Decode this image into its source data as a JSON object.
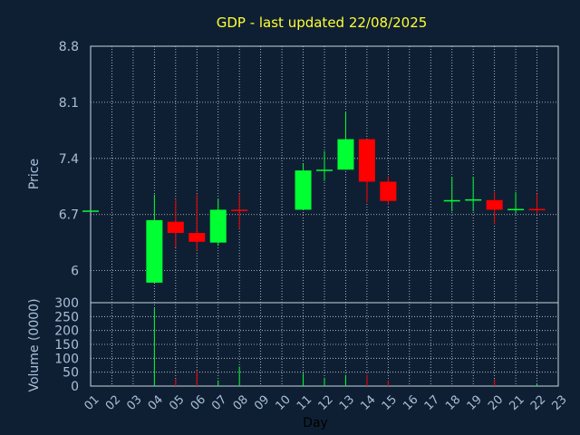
{
  "chart_data": {
    "type": "candlestick",
    "title": "GDP - last updated 22/08/2025",
    "xlabel": "Day",
    "x_ticks": [
      "01",
      "02",
      "03",
      "04",
      "05",
      "06",
      "07",
      "08",
      "09",
      "10",
      "11",
      "12",
      "13",
      "14",
      "15",
      "16",
      "17",
      "18",
      "19",
      "20",
      "21",
      "22",
      "23"
    ],
    "grid": true,
    "colors": {
      "background": "#0f1f33",
      "up": "#00ff33",
      "down": "#ff0000",
      "grid": "#c8d4e0",
      "title": "#ffff33",
      "axis_text": "#a9bfd9"
    },
    "price_panel": {
      "ylabel": "Price",
      "ylim": [
        5.6,
        8.8
      ],
      "y_ticks": [
        "8.8",
        "8.1",
        "7.4",
        "6.7",
        "6"
      ],
      "y_tick_values": [
        8.8,
        8.1,
        7.4,
        6.7,
        6.0
      ],
      "candles": [
        {
          "day": "01",
          "open": 6.75,
          "high": 6.75,
          "low": 6.75,
          "close": 6.75
        },
        {
          "day": "04",
          "open": 5.85,
          "high": 6.95,
          "low": 5.85,
          "close": 6.63
        },
        {
          "day": "05",
          "open": 6.61,
          "high": 6.88,
          "low": 6.29,
          "close": 6.47
        },
        {
          "day": "06",
          "open": 6.47,
          "high": 6.95,
          "low": 6.25,
          "close": 6.36
        },
        {
          "day": "07",
          "open": 6.35,
          "high": 6.89,
          "low": 6.31,
          "close": 6.76
        },
        {
          "day": "08",
          "open": 6.76,
          "high": 6.96,
          "low": 6.52,
          "close": 6.75
        },
        {
          "day": "11",
          "open": 6.76,
          "high": 7.33,
          "low": 6.76,
          "close": 7.25
        },
        {
          "day": "12",
          "open": 7.25,
          "high": 7.49,
          "low": 7.12,
          "close": 7.26
        },
        {
          "day": "13",
          "open": 7.26,
          "high": 7.98,
          "low": 7.26,
          "close": 7.64
        },
        {
          "day": "14",
          "open": 7.64,
          "high": 7.64,
          "low": 6.85,
          "close": 7.11
        },
        {
          "day": "15",
          "open": 7.11,
          "high": 7.18,
          "low": 6.82,
          "close": 6.87
        },
        {
          "day": "18",
          "open": 6.88,
          "high": 7.17,
          "low": 6.74,
          "close": 6.88
        },
        {
          "day": "19",
          "open": 6.88,
          "high": 7.17,
          "low": 6.74,
          "close": 6.89
        },
        {
          "day": "20",
          "open": 6.88,
          "high": 6.98,
          "low": 6.58,
          "close": 6.76
        },
        {
          "day": "21",
          "open": 6.76,
          "high": 6.98,
          "low": 6.71,
          "close": 6.77
        },
        {
          "day": "22",
          "open": 6.77,
          "high": 6.96,
          "low": 6.71,
          "close": 6.76
        }
      ]
    },
    "volume_panel": {
      "ylabel": "Volume (0000)",
      "ylim": [
        0,
        300
      ],
      "y_ticks": [
        "300",
        "250",
        "200",
        "150",
        "100",
        "50",
        "0"
      ],
      "y_tick_values": [
        300,
        250,
        200,
        150,
        100,
        50,
        0
      ],
      "bars": [
        {
          "day": "04",
          "volume": 280,
          "direction": "up"
        },
        {
          "day": "05",
          "volume": 25,
          "direction": "down"
        },
        {
          "day": "06",
          "volume": 55,
          "direction": "down"
        },
        {
          "day": "07",
          "volume": 20,
          "direction": "up"
        },
        {
          "day": "08",
          "volume": 70,
          "direction": "up"
        },
        {
          "day": "11",
          "volume": 45,
          "direction": "up"
        },
        {
          "day": "12",
          "volume": 30,
          "direction": "up"
        },
        {
          "day": "13",
          "volume": 40,
          "direction": "up"
        },
        {
          "day": "14",
          "volume": 40,
          "direction": "down"
        },
        {
          "day": "15",
          "volume": 20,
          "direction": "down"
        },
        {
          "day": "20",
          "volume": 25,
          "direction": "down"
        },
        {
          "day": "22",
          "volume": 10,
          "direction": "up"
        }
      ]
    }
  }
}
